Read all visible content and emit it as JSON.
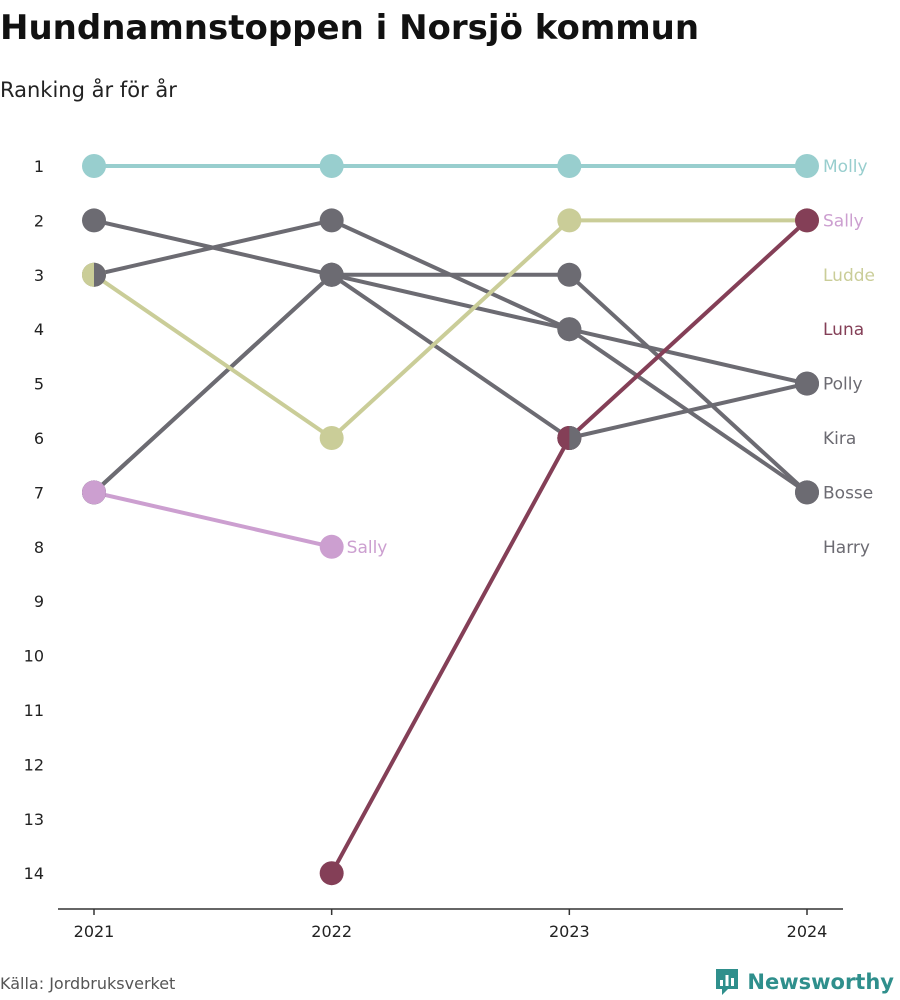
{
  "title": "Hundnamnstoppen i Norsjö kommun",
  "subtitle": "Ranking år för år",
  "source": "Källa: Jordbruksverket",
  "brand": "Newsworthy",
  "colors": {
    "molly": "#98cece",
    "sally": "#cc9fd0",
    "ludde": "#cacd98",
    "luna": "#843f57",
    "grey": "#6c6b72",
    "axis": "#333333",
    "brand": "#2f8f8c"
  },
  "chart_data": {
    "type": "line",
    "x": [
      "2021",
      "2022",
      "2023",
      "2024"
    ],
    "y_ticks": [
      "1",
      "2",
      "3",
      "4",
      "5",
      "6",
      "7",
      "8",
      "9",
      "10",
      "11",
      "12",
      "13",
      "14"
    ],
    "ylim": [
      1,
      14
    ],
    "y_reversed": true,
    "series": [
      {
        "name": "Bosse",
        "color": "#6c6b72",
        "values": [
          2,
          3,
          3,
          7
        ],
        "end_label": true
      },
      {
        "name": "Polly",
        "color": "#6c6b72",
        "values": [
          7,
          3,
          4,
          5
        ],
        "end_label": true
      },
      {
        "name": "Kira",
        "color": "#6c6b72",
        "values": [
          3,
          2,
          4,
          7
        ],
        "end_label": true
      },
      {
        "name": "Harry",
        "color": "#6c6b72",
        "values": [
          7,
          3,
          6,
          5
        ],
        "end_label": true
      },
      {
        "name": "Molly",
        "color": "#98cece",
        "values": [
          1,
          1,
          1,
          1
        ],
        "end_label": true
      },
      {
        "name": "Ludde",
        "color": "#cacd98",
        "values": [
          3,
          6,
          2,
          2
        ],
        "end_label": true
      },
      {
        "name": "Luna",
        "color": "#843f57",
        "values": [
          null,
          14,
          6,
          2
        ],
        "end_label": true
      },
      {
        "name": "Sally",
        "color": "#cc9fd0",
        "values": [
          7,
          8,
          null,
          null
        ],
        "end_label": false
      }
    ],
    "inline_labels": [
      {
        "text": "Sally",
        "x": "2022",
        "y": 8,
        "color": "#cc9fd0"
      }
    ],
    "end_labels": [
      {
        "text": "Molly",
        "y": 1,
        "color": "#98cece"
      },
      {
        "text": "Sally",
        "y": 2,
        "color": "#cc9fd0"
      },
      {
        "text": "Ludde",
        "y": 3,
        "color": "#cacd98"
      },
      {
        "text": "Luna",
        "y": 4,
        "color": "#843f57"
      },
      {
        "text": "Polly",
        "y": 5,
        "color": "#6c6b72"
      },
      {
        "text": "Kira",
        "y": 6,
        "color": "#6c6b72"
      },
      {
        "text": "Bosse",
        "y": 7,
        "color": "#6c6b72"
      },
      {
        "text": "Harry",
        "y": 8,
        "color": "#6c6b72"
      }
    ],
    "half_markers": [
      {
        "x": "2021",
        "y": 3,
        "left": "#cacd98",
        "right": "#6c6b72"
      },
      {
        "x": "2023",
        "y": 6,
        "left": "#843f57",
        "right": "#6c6b72"
      }
    ],
    "grid": false
  }
}
